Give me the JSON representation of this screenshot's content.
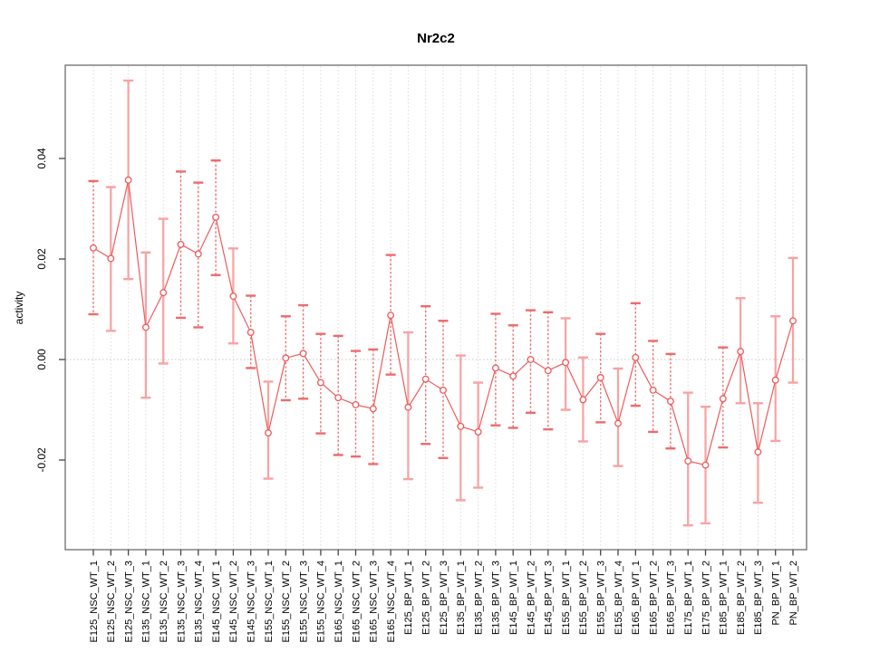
{
  "chart_data": {
    "type": "scatter",
    "subtype": "points-with-error-bars-and-connecting-line",
    "title": "Nr2c2",
    "xlabel": "",
    "ylabel": "activity",
    "legend": "none",
    "grid": "vertical dotted gridline at every category; dotted horizontal line at y=0",
    "yticks": [
      -0.02,
      0.0,
      0.02,
      0.04
    ],
    "ylim": [
      -0.038,
      0.059
    ],
    "zero_line": 0.0,
    "categories": [
      "E125_NSC_WT_1",
      "E125_NSC_WT_2",
      "E125_NSC_WT_3",
      "E135_NSC_WT_1",
      "E135_NSC_WT_2",
      "E135_NSC_WT_3",
      "E135_NSC_WT_4",
      "E145_NSC_WT_1",
      "E145_NSC_WT_2",
      "E145_NSC_WT_3",
      "E155_NSC_WT_1",
      "E155_NSC_WT_2",
      "E155_NSC_WT_3",
      "E155_NSC_WT_4",
      "E165_NSC_WT_1",
      "E165_NSC_WT_2",
      "E165_NSC_WT_3",
      "E165_NSC_WT_4",
      "E125_BP_WT_1",
      "E125_BP_WT_2",
      "E125_BP_WT_3",
      "E135_BP_WT_1",
      "E135_BP_WT_2",
      "E135_BP_WT_3",
      "E145_BP_WT_1",
      "E145_BP_WT_2",
      "E145_BP_WT_3",
      "E155_BP_WT_1",
      "E155_BP_WT_2",
      "E155_BP_WT_3",
      "E155_BP_WT_4",
      "E165_BP_WT_1",
      "E165_BP_WT_2",
      "E165_BP_WT_3",
      "E175_BP_WT_1",
      "E175_BP_WT_2",
      "E185_BP_WT_1",
      "E185_BP_WT_2",
      "E185_BP_WT_3",
      "PN_BP_WT_1",
      "PN_BP_WT_2"
    ],
    "series": [
      {
        "name": "activity",
        "values": [
          0.0222,
          0.0201,
          0.0357,
          0.0064,
          0.0133,
          0.0229,
          0.021,
          0.0283,
          0.0126,
          0.0054,
          -0.0146,
          0.0003,
          0.0012,
          -0.0046,
          -0.0076,
          -0.009,
          -0.0098,
          0.0088,
          -0.0095,
          -0.0039,
          -0.0061,
          -0.0133,
          -0.0144,
          -0.0017,
          -0.0033,
          0.0,
          -0.0022,
          -0.0006,
          -0.008,
          -0.0036,
          -0.0127,
          0.0004,
          -0.0061,
          -0.0083,
          -0.0202,
          -0.021,
          -0.0078,
          0.0016,
          -0.0184,
          -0.0041,
          0.0077
        ],
        "error_low": [
          0.009,
          0.0057,
          0.016,
          -0.0076,
          -0.0008,
          0.0083,
          0.0064,
          0.0168,
          0.0032,
          -0.0017,
          -0.0237,
          -0.0081,
          -0.0078,
          -0.0147,
          -0.019,
          -0.0193,
          -0.0208,
          -0.003,
          -0.0238,
          -0.0168,
          -0.0196,
          -0.028,
          -0.0255,
          -0.0131,
          -0.0136,
          -0.0106,
          -0.0139,
          -0.01,
          -0.0163,
          -0.0125,
          -0.0212,
          -0.0092,
          -0.0144,
          -0.0177,
          -0.033,
          -0.0326,
          -0.0175,
          -0.0087,
          -0.0285,
          -0.0162,
          -0.0046
        ],
        "error_high": [
          0.0355,
          0.0343,
          0.0555,
          0.0213,
          0.028,
          0.0374,
          0.0352,
          0.0396,
          0.0221,
          0.0127,
          -0.0044,
          0.0086,
          0.0108,
          0.0051,
          0.0047,
          0.0017,
          0.002,
          0.0208,
          0.0054,
          0.0106,
          0.0077,
          0.0008,
          -0.0046,
          0.0091,
          0.0068,
          0.0098,
          0.0094,
          0.0082,
          0.0004,
          0.0051,
          -0.0018,
          0.0112,
          0.0037,
          0.0011,
          -0.0066,
          -0.0094,
          0.0024,
          0.0122,
          -0.0087,
          0.0086,
          0.0202
        ],
        "bar_styles": [
          "dotted",
          "solid",
          "solid",
          "solid",
          "solid",
          "dotted",
          "dotted",
          "dotted",
          "solid",
          "dotted",
          "solid",
          "dotted",
          "dotted",
          "dotted",
          "dotted",
          "dotted",
          "dotted",
          "dotted",
          "solid",
          "dotted",
          "dotted",
          "solid",
          "solid",
          "dotted",
          "dotted",
          "dotted",
          "dotted",
          "solid",
          "solid",
          "dotted",
          "solid",
          "dotted",
          "dotted",
          "dotted",
          "solid",
          "solid",
          "dotted",
          "solid",
          "solid",
          "solid",
          "solid"
        ]
      }
    ],
    "colors": {
      "point_and_line": "#ef5a5a",
      "error_bar_solid": "#f9a2a2",
      "error_bar_dotted": "#ef6b6b",
      "gridline": "#dcdcdc",
      "zero_line": "#c8c8c8",
      "frame": "#808080",
      "tick": "#444444",
      "text": "#000000",
      "background": "#ffffff"
    }
  }
}
